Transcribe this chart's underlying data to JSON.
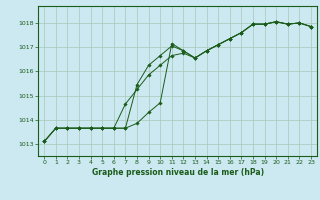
{
  "background_color": "#cce8f0",
  "grid_color": "#a8c8b8",
  "line_color": "#1a5c1a",
  "xlabel": "Graphe pression niveau de la mer (hPa)",
  "xlim": [
    -0.5,
    23.5
  ],
  "ylim": [
    1012.5,
    1018.7
  ],
  "yticks": [
    1013,
    1014,
    1015,
    1016,
    1017,
    1018
  ],
  "xticks": [
    0,
    1,
    2,
    3,
    4,
    5,
    6,
    7,
    8,
    9,
    10,
    11,
    12,
    13,
    14,
    15,
    16,
    17,
    18,
    19,
    20,
    21,
    22,
    23
  ],
  "series": [
    [
      1013.1,
      1013.65,
      1013.65,
      1013.65,
      1013.65,
      1013.65,
      1013.65,
      1013.65,
      1013.85,
      1014.3,
      1014.7,
      1017.15,
      1016.85,
      1016.55,
      1016.85,
      1017.1,
      1017.35,
      1017.6,
      1017.95,
      1017.95,
      1018.05,
      1017.95,
      1018.0,
      1017.85
    ],
    [
      1013.1,
      1013.65,
      1013.65,
      1013.65,
      1013.65,
      1013.65,
      1013.65,
      1013.65,
      1015.45,
      1016.25,
      1016.65,
      1017.05,
      1016.85,
      1016.55,
      1016.85,
      1017.1,
      1017.35,
      1017.6,
      1017.95,
      1017.95,
      1018.05,
      1017.95,
      1018.0,
      1017.85
    ],
    [
      1013.1,
      1013.65,
      1013.65,
      1013.65,
      1013.65,
      1013.65,
      1013.65,
      1014.65,
      1015.25,
      1015.85,
      1016.25,
      1016.65,
      1016.75,
      1016.55,
      1016.85,
      1017.1,
      1017.35,
      1017.6,
      1017.95,
      1017.95,
      1018.05,
      1017.95,
      1018.0,
      1017.85
    ]
  ]
}
